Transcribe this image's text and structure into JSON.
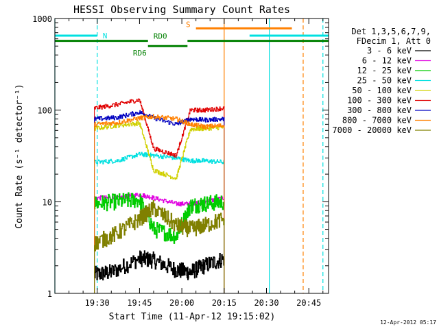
{
  "chart_data": {
    "type": "line",
    "title": "HESSI Observing Summary Count Rates",
    "xlabel": "Start Time (11-Apr-12 19:15:02)",
    "ylabel": "Count Rate (s⁻¹ detector⁻¹)",
    "yscale": "log",
    "ylim": [
      1,
      1000
    ],
    "xlim_minutes": [
      0,
      97
    ],
    "x_tick_labels": [
      "19:30",
      "19:45",
      "20:00",
      "20:15",
      "20:30",
      "20:45"
    ],
    "x_tick_minutes": [
      15,
      30,
      45,
      60,
      75,
      90
    ],
    "y_tick_labels": [
      "1",
      "10",
      "100",
      "1000"
    ],
    "y_tick_values": [
      1,
      10,
      100,
      1000
    ],
    "legend_header": [
      "Det 1,3,5,6,7,9,",
      "FDecim 1, Att 0"
    ],
    "legend_position": "right",
    "series": [
      {
        "name": "3 - 6 keV",
        "color": "#000000",
        "x": [
          14,
          20,
          30,
          35,
          43,
          48,
          53,
          60
        ],
        "values": [
          1.6,
          1.7,
          2.4,
          2.3,
          1.8,
          1.7,
          2.0,
          2.4
        ]
      },
      {
        "name": "6 - 12 keV",
        "color": "#e000e0",
        "x": [
          14,
          22,
          30,
          35,
          43,
          48,
          53,
          60
        ],
        "values": [
          11,
          11,
          12,
          11,
          9.5,
          9.5,
          10,
          11
        ]
      },
      {
        "name": "12 - 25 keV",
        "color": "#00cc00",
        "x": [
          14,
          22,
          30,
          35,
          43,
          48,
          53,
          60
        ],
        "values": [
          9.5,
          10,
          10.5,
          5.0,
          4.2,
          9.0,
          9.5,
          10
        ]
      },
      {
        "name": "25 - 50 keV",
        "color": "#00e0e0",
        "x": [
          14,
          22,
          30,
          35,
          43,
          48,
          53,
          60
        ],
        "values": [
          27,
          28,
          33,
          32,
          30,
          28,
          28,
          27
        ]
      },
      {
        "name": "50 - 100 keV",
        "color": "#d0d000",
        "x": [
          14,
          22,
          30,
          35,
          43,
          48,
          53,
          60
        ],
        "values": [
          63,
          68,
          72,
          22,
          18,
          62,
          63,
          65
        ]
      },
      {
        "name": "100 - 300 keV",
        "color": "#e00000",
        "x": [
          14,
          22,
          30,
          35,
          43,
          48,
          53,
          60
        ],
        "values": [
          105,
          115,
          130,
          38,
          32,
          100,
          100,
          105
        ]
      },
      {
        "name": "300 - 800 keV",
        "color": "#0000c0",
        "x": [
          14,
          22,
          30,
          35,
          43,
          48,
          53,
          60
        ],
        "values": [
          80,
          83,
          95,
          82,
          70,
          80,
          78,
          80
        ]
      },
      {
        "name": "800 - 7000 keV",
        "color": "#ff8000",
        "x": [
          14,
          22,
          30,
          35,
          43,
          48,
          53,
          60
        ],
        "values": [
          70,
          73,
          82,
          85,
          80,
          70,
          66,
          68
        ]
      },
      {
        "name": "7000 - 20000 keV",
        "color": "#808000",
        "x": [
          14,
          22,
          30,
          35,
          43,
          48,
          53,
          60
        ],
        "values": [
          3.5,
          4.5,
          6.5,
          8.5,
          5.5,
          5.0,
          5.5,
          6.5
        ]
      }
    ],
    "flags": [
      {
        "label": "N",
        "color": "#00e0e0",
        "y": 650,
        "segments": [
          [
            0,
            15
          ],
          [
            69,
            97
          ]
        ]
      },
      {
        "label": "S",
        "color": "#ff8000",
        "y": 780,
        "segments": [
          [
            50,
            84
          ]
        ]
      },
      {
        "label": "RD0",
        "color": "#008000",
        "y": 570,
        "segments": [
          [
            0,
            33
          ],
          [
            47,
            97
          ]
        ]
      },
      {
        "label": "RD6",
        "color": "#008000",
        "y": 500,
        "segments": [
          [
            33,
            47
          ]
        ]
      }
    ],
    "vertical_markers": [
      {
        "color": "#00e0e0",
        "style": "solid",
        "x": 0
      },
      {
        "color": "#00e0e0",
        "style": "dashed",
        "x": 15
      },
      {
        "color": "#ff8000",
        "style": "solid",
        "x": 60
      },
      {
        "color": "#00e0e0",
        "style": "solid",
        "x": 76
      },
      {
        "color": "#ff8000",
        "style": "dashed",
        "x": 88
      },
      {
        "color": "#00e0e0",
        "style": "dashed",
        "x": 95
      }
    ],
    "footer": "12-Apr-2012 05:17"
  }
}
